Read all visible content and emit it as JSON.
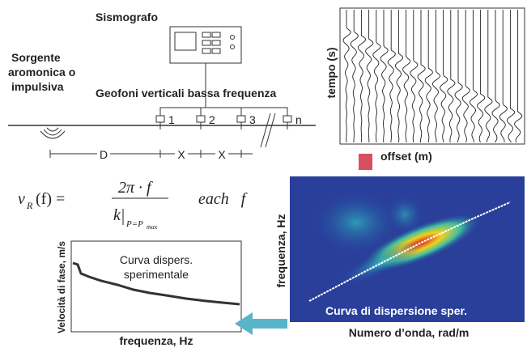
{
  "labels": {
    "seismograph": "Sismografo",
    "source": [
      "Sorgente",
      "aromonica o",
      "impulsiva"
    ],
    "geophones": "Geofoni verticali bassa frequenza",
    "geophone_ids": [
      "1",
      "2",
      "3",
      "n"
    ],
    "distances": [
      "D",
      "X",
      "X"
    ],
    "time_axis": "tempo (s)",
    "offset_axis": "offset (m)"
  },
  "formula": {
    "lhs": "v",
    "lhs_sub": "R",
    "lhs_rest": "(f) =",
    "numerator": "2π · f",
    "denominator": "k",
    "condition": "P=P",
    "condition_sub": "max",
    "suffix": "each   f"
  },
  "curve_panel": {
    "ylabel": "Velocità di fase, m/s",
    "xlabel": "frequenza, Hz",
    "caption": [
      "Curva dispers.",
      "sperimentale"
    ]
  },
  "spectrum_panel": {
    "ylabel": "frequenza, Hz",
    "caption": "Curva di dispersione sper.",
    "xlabel": "Numero d’onda, rad/m"
  }
}
